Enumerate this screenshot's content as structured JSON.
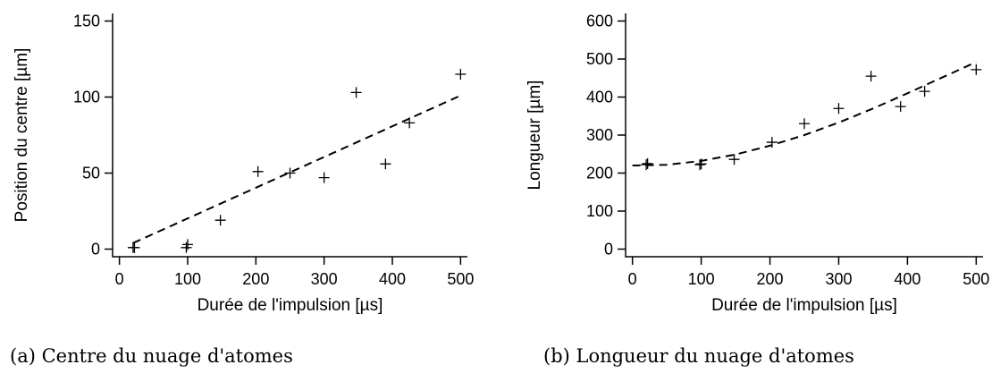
{
  "chart_data": [
    {
      "type": "scatter",
      "caption": "(a) Centre du nuage d'atomes",
      "xlabel": "Durée de l'impulsion [µs]",
      "ylabel": "Position du centre [µm]",
      "xlim": [
        -10,
        510
      ],
      "ylim": [
        -5,
        155
      ],
      "xticks": [
        0,
        100,
        200,
        300,
        400,
        500
      ],
      "yticks": [
        0,
        50,
        100,
        150
      ],
      "grid": false,
      "series": [
        {
          "marker": "+",
          "x": [
            20,
            22,
            98,
            100,
            148,
            203,
            250,
            300,
            347,
            390,
            425,
            500
          ],
          "y": [
            1,
            1,
            1,
            3,
            19,
            51,
            50,
            47,
            103,
            56,
            83,
            115
          ]
        }
      ],
      "fit": {
        "style": "dashed",
        "x": [
          20,
          500
        ],
        "y": [
          4,
          101
        ]
      }
    },
    {
      "type": "scatter",
      "caption": "(b) Longueur du nuage d'atomes",
      "xlabel": "Durée de l'impulsion [µs]",
      "ylabel": "Longueur [µm]",
      "xlim": [
        -10,
        510
      ],
      "ylim": [
        -20,
        620
      ],
      "xticks": [
        0,
        100,
        200,
        300,
        400,
        500
      ],
      "yticks": [
        0,
        100,
        200,
        300,
        400,
        500,
        600
      ],
      "grid": false,
      "series": [
        {
          "marker": "+",
          "x": [
            20,
            22,
            98,
            100,
            148,
            203,
            250,
            300,
            347,
            390,
            425,
            500
          ],
          "y": [
            222,
            225,
            222,
            224,
            236,
            281,
            330,
            370,
            455,
            375,
            415,
            472
          ]
        }
      ],
      "fit": {
        "style": "dashed",
        "x": [
          0,
          50,
          100,
          150,
          200,
          250,
          300,
          350,
          400,
          450,
          500
        ],
        "y": [
          220,
          222,
          232,
          249,
          272,
          300,
          333,
          370,
          410,
          451,
          492
        ]
      }
    }
  ]
}
